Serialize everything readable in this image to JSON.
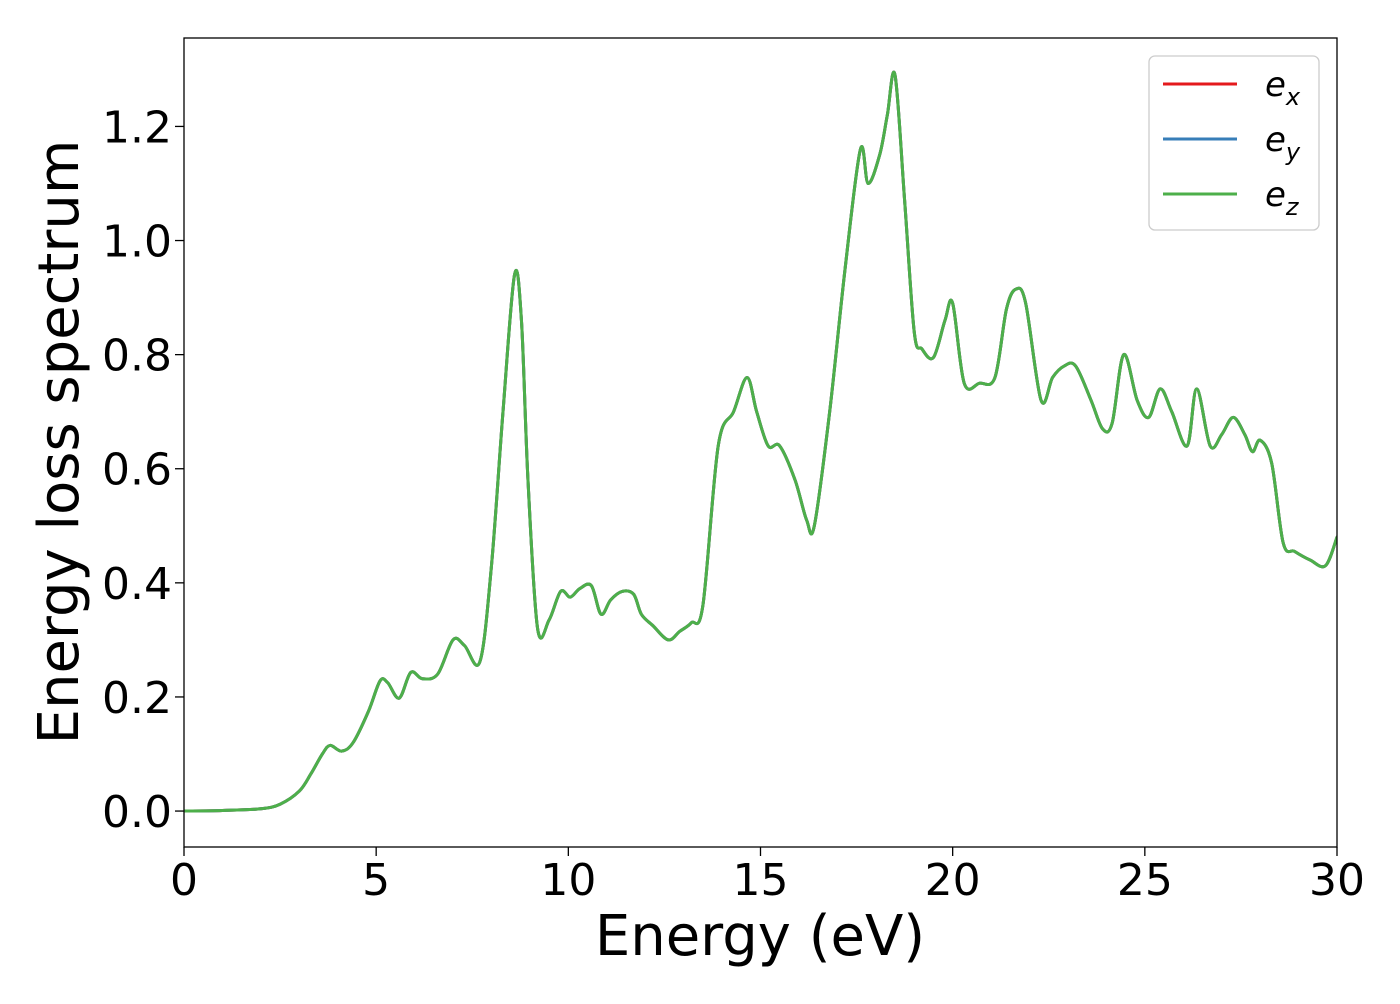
{
  "chart_data": {
    "type": "line",
    "title": "",
    "xlabel": "Energy (eV)",
    "ylabel": "Energy loss spectrum",
    "xlim": [
      0,
      30
    ],
    "ylim": [
      -0.063,
      1.355
    ],
    "xticks": [
      0,
      5,
      10,
      15,
      20,
      25,
      30
    ],
    "xtick_labels": [
      "0",
      "5",
      "10",
      "15",
      "20",
      "25",
      "30"
    ],
    "yticks": [
      0.0,
      0.2,
      0.4,
      0.6,
      0.8,
      1.0,
      1.2
    ],
    "ytick_labels": [
      "0.0",
      "0.2",
      "0.4",
      "0.6",
      "0.8",
      "1.0",
      "1.2"
    ],
    "grid": false,
    "legend_position": "top-right",
    "x": [
      0,
      1.0,
      2.0,
      2.5,
      3.0,
      3.3,
      3.6,
      3.8,
      4.1,
      4.4,
      4.8,
      5.1,
      5.3,
      5.6,
      5.9,
      6.2,
      6.6,
      7.0,
      7.3,
      7.7,
      8.0,
      8.3,
      8.6,
      8.78,
      8.95,
      9.2,
      9.5,
      9.8,
      10.05,
      10.3,
      10.6,
      10.85,
      11.1,
      11.4,
      11.7,
      11.9,
      12.2,
      12.6,
      12.9,
      13.2,
      13.5,
      13.9,
      14.3,
      14.65,
      14.9,
      15.2,
      15.5,
      15.9,
      16.2,
      16.4,
      16.8,
      17.2,
      17.6,
      17.8,
      18.1,
      18.3,
      18.5,
      18.75,
      19.0,
      19.2,
      19.5,
      19.8,
      20.0,
      20.3,
      20.7,
      21.1,
      21.4,
      21.65,
      21.9,
      22.3,
      22.6,
      22.9,
      23.2,
      23.6,
      23.9,
      24.15,
      24.45,
      24.8,
      25.1,
      25.4,
      25.7,
      26.1,
      26.35,
      26.7,
      27.0,
      27.3,
      27.6,
      27.8,
      28.0,
      28.3,
      28.6,
      28.9,
      29.3,
      29.7,
      30.0
    ],
    "series": [
      {
        "name": "e_x",
        "legend_main": "e",
        "legend_sub": "x",
        "color": "#e41a1c",
        "values": [
          0.0,
          0.001,
          0.004,
          0.012,
          0.035,
          0.065,
          0.1,
          0.115,
          0.105,
          0.12,
          0.175,
          0.228,
          0.225,
          0.198,
          0.243,
          0.232,
          0.24,
          0.3,
          0.29,
          0.262,
          0.43,
          0.7,
          0.94,
          0.86,
          0.58,
          0.32,
          0.335,
          0.385,
          0.375,
          0.39,
          0.395,
          0.345,
          0.37,
          0.385,
          0.38,
          0.345,
          0.325,
          0.3,
          0.315,
          0.33,
          0.36,
          0.64,
          0.7,
          0.76,
          0.7,
          0.64,
          0.64,
          0.58,
          0.51,
          0.5,
          0.7,
          0.95,
          1.16,
          1.1,
          1.15,
          1.22,
          1.29,
          1.07,
          0.84,
          0.81,
          0.795,
          0.86,
          0.89,
          0.75,
          0.75,
          0.76,
          0.88,
          0.915,
          0.89,
          0.72,
          0.76,
          0.78,
          0.78,
          0.72,
          0.67,
          0.68,
          0.8,
          0.72,
          0.69,
          0.74,
          0.7,
          0.64,
          0.74,
          0.64,
          0.66,
          0.69,
          0.66,
          0.63,
          0.65,
          0.61,
          0.47,
          0.455,
          0.44,
          0.43,
          0.48
        ]
      },
      {
        "name": "e_y",
        "legend_main": "e",
        "legend_sub": "y",
        "color": "#377eb8",
        "values": [
          0.0,
          0.001,
          0.004,
          0.012,
          0.035,
          0.065,
          0.1,
          0.115,
          0.105,
          0.12,
          0.175,
          0.228,
          0.225,
          0.198,
          0.243,
          0.232,
          0.24,
          0.3,
          0.29,
          0.262,
          0.43,
          0.7,
          0.94,
          0.86,
          0.58,
          0.32,
          0.335,
          0.385,
          0.375,
          0.39,
          0.395,
          0.345,
          0.37,
          0.385,
          0.38,
          0.345,
          0.325,
          0.3,
          0.315,
          0.33,
          0.36,
          0.64,
          0.7,
          0.76,
          0.7,
          0.64,
          0.64,
          0.58,
          0.51,
          0.5,
          0.7,
          0.95,
          1.16,
          1.1,
          1.15,
          1.22,
          1.29,
          1.07,
          0.84,
          0.81,
          0.795,
          0.86,
          0.89,
          0.75,
          0.75,
          0.76,
          0.88,
          0.915,
          0.89,
          0.72,
          0.76,
          0.78,
          0.78,
          0.72,
          0.67,
          0.68,
          0.8,
          0.72,
          0.69,
          0.74,
          0.7,
          0.64,
          0.74,
          0.64,
          0.66,
          0.69,
          0.66,
          0.63,
          0.65,
          0.61,
          0.47,
          0.455,
          0.44,
          0.43,
          0.48
        ]
      },
      {
        "name": "e_z",
        "legend_main": "e",
        "legend_sub": "z",
        "color": "#4daf4a",
        "values": [
          0.0,
          0.001,
          0.004,
          0.012,
          0.035,
          0.065,
          0.1,
          0.115,
          0.105,
          0.12,
          0.175,
          0.228,
          0.225,
          0.198,
          0.243,
          0.232,
          0.24,
          0.3,
          0.29,
          0.262,
          0.43,
          0.7,
          0.94,
          0.86,
          0.58,
          0.32,
          0.335,
          0.385,
          0.375,
          0.39,
          0.395,
          0.345,
          0.37,
          0.385,
          0.38,
          0.345,
          0.325,
          0.3,
          0.315,
          0.33,
          0.36,
          0.64,
          0.7,
          0.76,
          0.7,
          0.64,
          0.64,
          0.58,
          0.51,
          0.5,
          0.7,
          0.95,
          1.16,
          1.1,
          1.15,
          1.22,
          1.29,
          1.07,
          0.84,
          0.81,
          0.795,
          0.86,
          0.89,
          0.75,
          0.75,
          0.76,
          0.88,
          0.915,
          0.89,
          0.72,
          0.76,
          0.78,
          0.78,
          0.72,
          0.67,
          0.68,
          0.8,
          0.72,
          0.69,
          0.74,
          0.7,
          0.64,
          0.74,
          0.64,
          0.66,
          0.69,
          0.66,
          0.63,
          0.65,
          0.61,
          0.47,
          0.455,
          0.44,
          0.43,
          0.48
        ]
      }
    ]
  }
}
